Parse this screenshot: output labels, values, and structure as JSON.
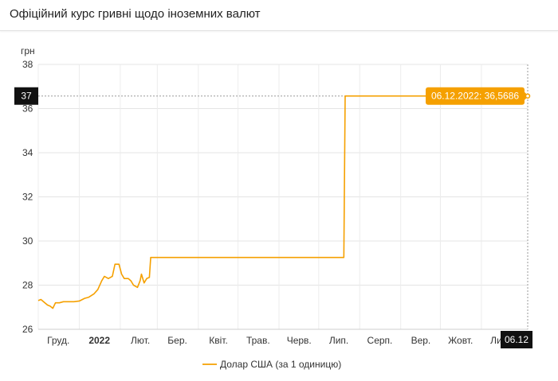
{
  "header": {
    "title": "Офіційний курс гривні щодо іноземних валют"
  },
  "chart_data": {
    "type": "line",
    "ylabel": "грн",
    "ylim": [
      26,
      38
    ],
    "yticks": [
      26,
      28,
      30,
      32,
      34,
      36,
      38
    ],
    "x_range": [
      "2021-12-01",
      "2022-12-06"
    ],
    "x_tick_labels": [
      {
        "label": "Груд.",
        "date": "2021-12-01",
        "bold": false
      },
      {
        "label": "2022",
        "date": "2022-01-01",
        "bold": true
      },
      {
        "label": "Лют.",
        "date": "2022-02-01",
        "bold": false
      },
      {
        "label": "Бер.",
        "date": "2022-03-01",
        "bold": false
      },
      {
        "label": "Квіт.",
        "date": "2022-04-01",
        "bold": false
      },
      {
        "label": "Трав.",
        "date": "2022-05-01",
        "bold": false
      },
      {
        "label": "Черв.",
        "date": "2022-06-01",
        "bold": false
      },
      {
        "label": "Лип.",
        "date": "2022-07-01",
        "bold": false
      },
      {
        "label": "Серп.",
        "date": "2022-08-01",
        "bold": false
      },
      {
        "label": "Вер.",
        "date": "2022-09-01",
        "bold": false
      },
      {
        "label": "Жовт.",
        "date": "2022-10-01",
        "bold": false
      },
      {
        "label": "Лист.",
        "date": "2022-11-01",
        "bold": false
      }
    ],
    "grid": true,
    "legend_position": "bottom",
    "series": [
      {
        "name": "Долар США (за 1 одиницю)",
        "color": "#f5a000",
        "points": [
          [
            "2021-12-01",
            27.3
          ],
          [
            "2021-12-03",
            27.35
          ],
          [
            "2021-12-06",
            27.2
          ],
          [
            "2021-12-08",
            27.1
          ],
          [
            "2021-12-10",
            27.05
          ],
          [
            "2021-12-12",
            26.95
          ],
          [
            "2021-12-14",
            27.2
          ],
          [
            "2021-12-17",
            27.2
          ],
          [
            "2021-12-20",
            27.25
          ],
          [
            "2021-12-24",
            27.25
          ],
          [
            "2021-12-28",
            27.25
          ],
          [
            "2022-01-01",
            27.28
          ],
          [
            "2022-01-05",
            27.4
          ],
          [
            "2022-01-08",
            27.45
          ],
          [
            "2022-01-12",
            27.6
          ],
          [
            "2022-01-15",
            27.8
          ],
          [
            "2022-01-18",
            28.2
          ],
          [
            "2022-01-20",
            28.4
          ],
          [
            "2022-01-23",
            28.3
          ],
          [
            "2022-01-26",
            28.4
          ],
          [
            "2022-01-28",
            28.95
          ],
          [
            "2022-01-31",
            28.95
          ],
          [
            "2022-02-02",
            28.5
          ],
          [
            "2022-02-04",
            28.3
          ],
          [
            "2022-02-07",
            28.3
          ],
          [
            "2022-02-09",
            28.2
          ],
          [
            "2022-02-11",
            28.0
          ],
          [
            "2022-02-14",
            27.9
          ],
          [
            "2022-02-16",
            28.2
          ],
          [
            "2022-02-17",
            28.5
          ],
          [
            "2022-02-19",
            28.1
          ],
          [
            "2022-02-21",
            28.3
          ],
          [
            "2022-02-23",
            28.35
          ],
          [
            "2022-02-24",
            29.2549
          ],
          [
            "2022-07-20",
            29.2549
          ],
          [
            "2022-07-21",
            36.5686
          ],
          [
            "2022-12-06",
            36.5686
          ]
        ]
      }
    ],
    "crosshair": {
      "y_value_label": "37",
      "x_value_label": "06.12",
      "tooltip": "06.12.2022: 36,5686",
      "date": "2022-12-06",
      "value": 36.5686
    }
  }
}
